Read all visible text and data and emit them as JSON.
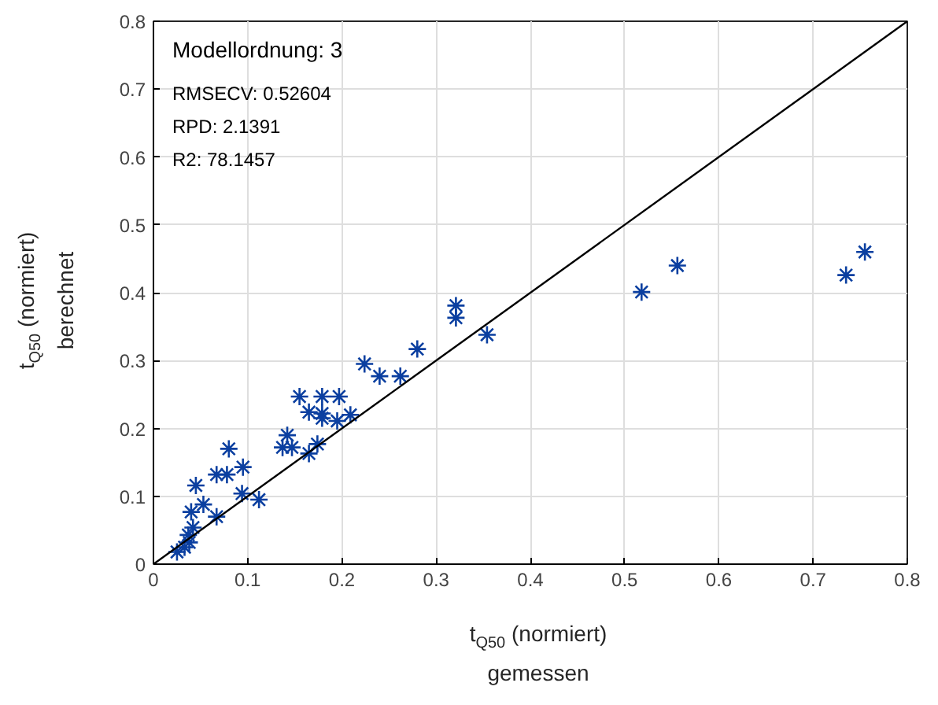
{
  "chart_data": {
    "type": "scatter",
    "xlabel": "t$_{Q50}$ (normiert)\ngemessen",
    "ylabel": "t$_{Q50}$ (normiert)\nberechnet",
    "xlim": [
      0,
      0.8
    ],
    "ylim": [
      0,
      0.8
    ],
    "xticks": [
      0,
      0.1,
      0.2,
      0.3,
      0.4,
      0.5,
      0.6,
      0.7,
      0.8
    ],
    "yticks": [
      0,
      0.1,
      0.2,
      0.3,
      0.4,
      0.5,
      0.6,
      0.7,
      0.8
    ],
    "grid": true,
    "annotations": [
      "Modellordnung: 3",
      "RMSECV: 0.52604",
      "RPD: 2.1391",
      "R2: 78.1457"
    ],
    "series": [
      {
        "marker": "cross",
        "color": "#0b3fa0",
        "x": [
          0.025,
          0.033,
          0.038,
          0.037,
          0.042,
          0.04,
          0.053,
          0.067,
          0.045,
          0.067,
          0.078,
          0.08,
          0.095,
          0.094,
          0.112,
          0.137,
          0.142,
          0.147,
          0.165,
          0.174,
          0.155,
          0.165,
          0.179,
          0.179,
          0.179,
          0.197,
          0.195,
          0.209,
          0.224,
          0.24,
          0.262,
          0.28,
          0.321,
          0.321,
          0.354,
          0.518,
          0.556,
          0.735,
          0.755
        ],
        "values": [
          0.018,
          0.025,
          0.032,
          0.043,
          0.054,
          0.077,
          0.088,
          0.07,
          0.116,
          0.132,
          0.132,
          0.17,
          0.143,
          0.104,
          0.095,
          0.172,
          0.19,
          0.172,
          0.163,
          0.177,
          0.247,
          0.224,
          0.247,
          0.222,
          0.215,
          0.247,
          0.211,
          0.22,
          0.295,
          0.277,
          0.277,
          0.317,
          0.381,
          0.363,
          0.338,
          0.401,
          0.44,
          0.426,
          0.46
        ]
      },
      {
        "type": "line",
        "color": "#000000",
        "x": [
          0,
          0.8
        ],
        "values": [
          0,
          0.8
        ]
      }
    ]
  }
}
